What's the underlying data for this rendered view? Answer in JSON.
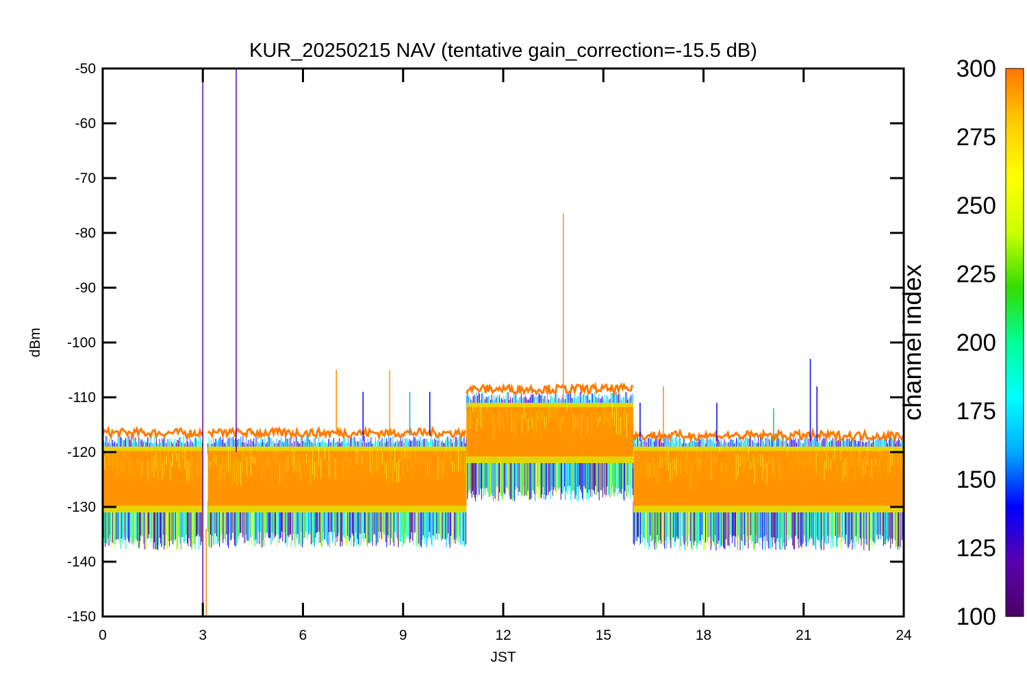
{
  "chart_data": {
    "type": "line",
    "title": "KUR_20250215 NAV (tentative gain_correction=-15.5 dB)",
    "xlabel": "JST",
    "ylabel": "dBm",
    "xlim": [
      0,
      24
    ],
    "ylim": [
      -150,
      -50
    ],
    "xticks": [
      0,
      3,
      6,
      9,
      12,
      15,
      18,
      21,
      24
    ],
    "yticks": [
      -50,
      -60,
      -70,
      -80,
      -90,
      -100,
      -110,
      -120,
      -130,
      -140,
      -150
    ],
    "grid": false,
    "colorbar": {
      "label": "channel index",
      "range": [
        100,
        300
      ],
      "ticks": [
        300,
        275,
        250,
        225,
        200,
        175,
        150,
        125,
        100
      ],
      "colormap": [
        "#4b0066",
        "#5a00b0",
        "#0000ff",
        "#00aaff",
        "#00ffff",
        "#00ff99",
        "#33dd00",
        "#ccff00",
        "#ffff00",
        "#ffcc00",
        "#ff7700"
      ]
    },
    "segments": [
      {
        "start": 0.0,
        "end": 3.0,
        "core_top": -119,
        "core_bottom": -131,
        "low_edge": -135,
        "top_line": -116.5
      },
      {
        "start": 3.15,
        "end": 10.9,
        "core_top": -119,
        "core_bottom": -131,
        "low_edge": -134.5,
        "top_line": -116.5
      },
      {
        "start": 10.9,
        "end": 15.9,
        "core_top": -111,
        "core_bottom": -122,
        "low_edge": -126,
        "top_line": -108.5
      },
      {
        "start": 15.9,
        "end": 24.0,
        "core_top": -119,
        "core_bottom": -131,
        "low_edge": -135,
        "top_line": -117
      }
    ],
    "spikes": [
      {
        "x": 3.0,
        "y1": -150,
        "y2": -51,
        "color": "#5a00b0"
      },
      {
        "x": 4.0,
        "y1": -120,
        "y2": -50,
        "color": "#5a00b0"
      },
      {
        "x": 3.1,
        "y1": -150,
        "y2": -134,
        "color": "#ff8800"
      },
      {
        "x": 7.0,
        "y1": -116,
        "y2": -105,
        "color": "#ff8800"
      },
      {
        "x": 7.8,
        "y1": -118,
        "y2": -109,
        "color": "#0000ff"
      },
      {
        "x": 8.6,
        "y1": -117,
        "y2": -105,
        "color": "#ff9900"
      },
      {
        "x": 9.2,
        "y1": -117,
        "y2": -109,
        "color": "#00aaff"
      },
      {
        "x": 9.8,
        "y1": -117,
        "y2": -109,
        "color": "#0000ff"
      },
      {
        "x": 13.8,
        "y1": -110,
        "y2": -76.5,
        "color": "#ff8800"
      },
      {
        "x": 16.1,
        "y1": -118,
        "y2": -111,
        "color": "#0000ff"
      },
      {
        "x": 16.8,
        "y1": -118,
        "y2": -108,
        "color": "#ff8800"
      },
      {
        "x": 18.4,
        "y1": -118,
        "y2": -111,
        "color": "#0000ff"
      },
      {
        "x": 20.1,
        "y1": -118,
        "y2": -112,
        "color": "#00cc66"
      },
      {
        "x": 21.2,
        "y1": -118,
        "y2": -103,
        "color": "#0000ff"
      },
      {
        "x": 21.4,
        "y1": -118,
        "y2": -108,
        "color": "#0000ff"
      }
    ]
  }
}
